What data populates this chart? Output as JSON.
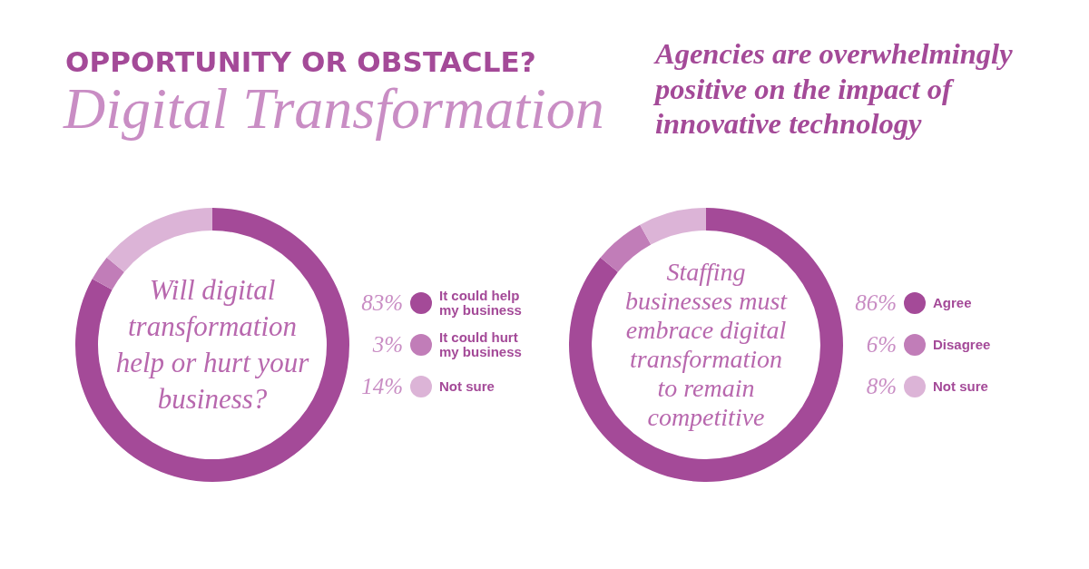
{
  "chart_data": [
    {
      "type": "other",
      "title": "OPPORTUNITY OR OBSTACLE?",
      "subtitle": "Digital Transformation",
      "annotations": [
        "Agencies are overwhelmingly positive on the impact of innovative technology"
      ]
    },
    {
      "type": "donut",
      "title": "Will digital transformation help or hurt your business?",
      "categories": [
        "It could help my business",
        "It could hurt my business",
        "Not sure"
      ],
      "values": [
        83,
        3,
        14
      ],
      "colors": [
        "#a44a98",
        "#c17db8",
        "#dcb4d7"
      ],
      "value_labels": [
        "83%",
        "3%",
        "14%"
      ],
      "legend": "right"
    },
    {
      "type": "donut",
      "title": "Staffing businesses must embrace digital transformation to remain competitive",
      "categories": [
        "Agree",
        "Disagree",
        "Not sure"
      ],
      "values": [
        86,
        6,
        8
      ],
      "colors": [
        "#a44a98",
        "#c17db8",
        "#dcb4d7"
      ],
      "value_labels": [
        "86%",
        "6%",
        "8%"
      ],
      "legend": "right"
    }
  ]
}
